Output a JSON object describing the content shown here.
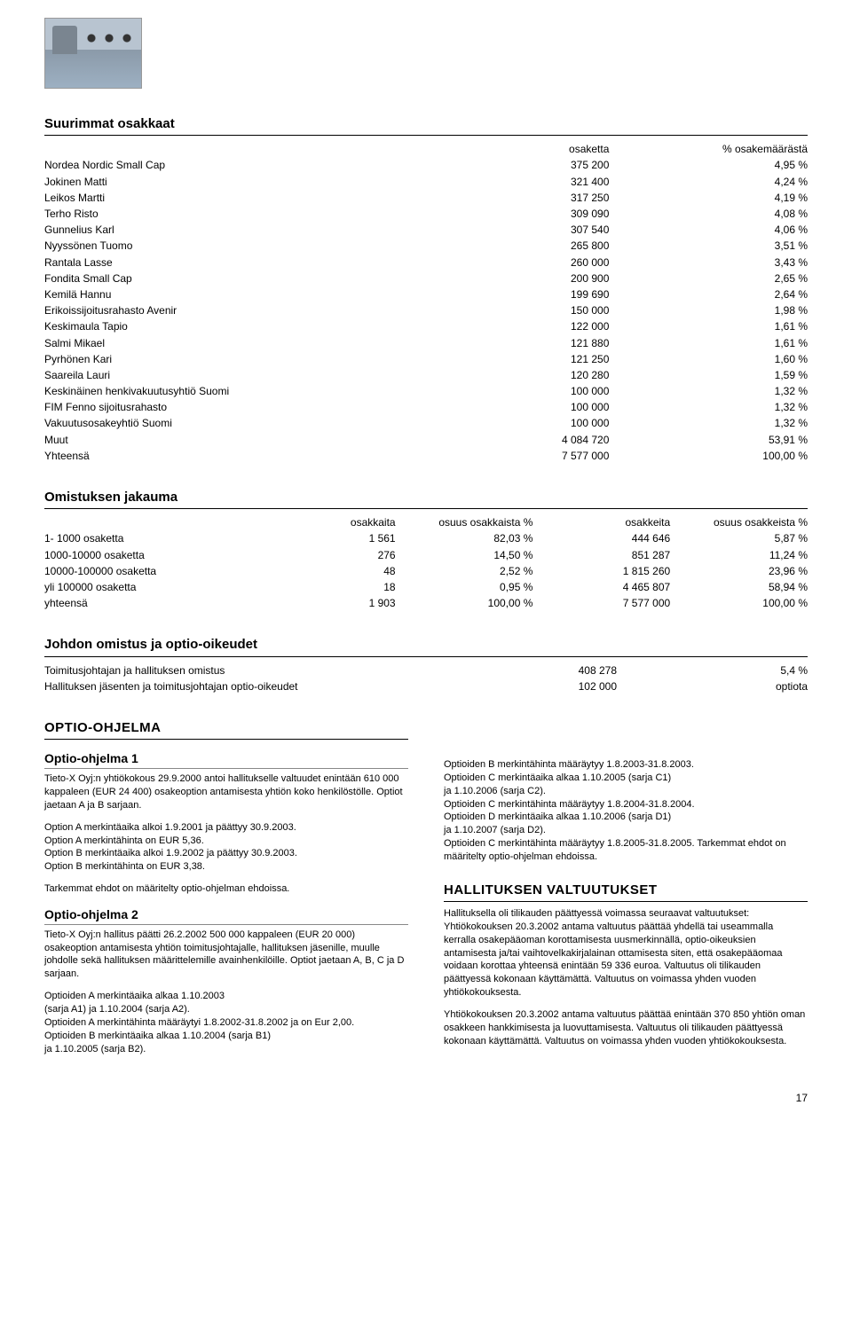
{
  "page_number": "17",
  "shareholders": {
    "title": "Suurimmat osakkaat",
    "headers": [
      "",
      "osaketta",
      "% osakemäärästä"
    ],
    "rows": [
      [
        "Nordea Nordic Small Cap",
        "375 200",
        "4,95 %"
      ],
      [
        "Jokinen Matti",
        "321 400",
        "4,24 %"
      ],
      [
        "Leikos Martti",
        "317 250",
        "4,19 %"
      ],
      [
        "Terho Risto",
        "309 090",
        "4,08 %"
      ],
      [
        "Gunnelius Karl",
        "307 540",
        "4,06 %"
      ],
      [
        "Nyyssönen Tuomo",
        "265 800",
        "3,51 %"
      ],
      [
        "Rantala Lasse",
        "260 000",
        "3,43 %"
      ],
      [
        "Fondita Small Cap",
        "200 900",
        "2,65 %"
      ],
      [
        "Kemilä Hannu",
        "199 690",
        "2,64 %"
      ],
      [
        "Erikoissijoitusrahasto Avenir",
        "150 000",
        "1,98 %"
      ],
      [
        "Keskimaula Tapio",
        "122 000",
        "1,61 %"
      ],
      [
        "Salmi Mikael",
        "121 880",
        "1,61 %"
      ],
      [
        "Pyrhönen Kari",
        "121 250",
        "1,60 %"
      ],
      [
        "Saareila Lauri",
        "120 280",
        "1,59 %"
      ],
      [
        "Keskinäinen henkivakuutusyhtiö Suomi",
        "100 000",
        "1,32 %"
      ],
      [
        "FIM Fenno sijoitusrahasto",
        "100 000",
        "1,32 %"
      ],
      [
        "Vakuutusosakeyhtiö Suomi",
        "100 000",
        "1,32 %"
      ],
      [
        "Muut",
        "4 084 720",
        "53,91 %"
      ],
      [
        "Yhteensä",
        "7 577 000",
        "100,00 %"
      ]
    ]
  },
  "distribution": {
    "title": "Omistuksen jakauma",
    "headers": [
      "",
      "osakkaita",
      "osuus osakkaista %",
      "osakkeita",
      "osuus osakkeista %"
    ],
    "rows": [
      [
        "1- 1000 osaketta",
        "1 561",
        "82,03 %",
        "444 646",
        "5,87 %"
      ],
      [
        "1000-10000 osaketta",
        "276",
        "14,50 %",
        "851 287",
        "11,24 %"
      ],
      [
        "10000-100000 osaketta",
        "48",
        "2,52 %",
        "1 815 260",
        "23,96 %"
      ],
      [
        "yli 100000 osaketta",
        "18",
        "0,95 %",
        "4 465 807",
        "58,94 %"
      ],
      [
        "yhteensä",
        "1 903",
        "100,00 %",
        "7 577 000",
        "100,00 %"
      ]
    ]
  },
  "mgmt": {
    "title": "Johdon omistus ja optio-oikeudet",
    "rows": [
      [
        "Toimitusjohtajan ja hallituksen omistus",
        "408 278",
        "5,4 %"
      ],
      [
        "Hallituksen jäsenten ja toimitusjohtajan optio-oikeudet",
        "102 000",
        "optiota"
      ]
    ]
  },
  "optio": {
    "heading": "OPTIO-OHJELMA",
    "p1_title": "Optio-ohjelma 1",
    "p1_a": "Tieto-X Oyj:n yhtiökokous 29.9.2000 antoi hallitukselle valtuudet enintään 610 000 kappaleen (EUR 24 400) osakeoption antamisesta yhtiön koko henkilöstölle. Optiot jaetaan A ja B sarjaan.",
    "p1_b": "Option A merkintäaika alkoi 1.9.2001 ja päättyy 30.9.2003.\nOption A merkintähinta on EUR 5,36.\nOption B merkintäaika alkoi 1.9.2002 ja päättyy 30.9.2003.\nOption B merkintähinta on EUR 3,38.",
    "p1_c": "Tarkemmat ehdot on määritelty optio-ohjelman ehdoissa.",
    "p2_title": "Optio-ohjelma 2",
    "p2_a": "Tieto-X Oyj:n hallitus päätti 26.2.2002  500 000 kappaleen (EUR 20 000) osakeoption antamisesta yhtiön toimitusjohtajalle, hallituksen jäsenille, muulle johdolle sekä hallituksen määrittelemille avainhenkilöille. Optiot jaetaan A, B, C ja D sarjaan.",
    "p2_b": "Optioiden A merkintäaika alkaa 1.10.2003\n(sarja A1) ja 1.10.2004 (sarja A2).\nOptioiden A merkintähinta määräytyi 1.8.2002-31.8.2002 ja on Eur 2,00.\nOptioiden B merkintäaika alkaa 1.10.2004 (sarja B1)\nja 1.10.2005 (sarja B2).",
    "right_a": "Optioiden B merkintähinta määräytyy 1.8.2003-31.8.2003.\nOptioiden C merkintäaika alkaa 1.10.2005 (sarja C1)\nja 1.10.2006 (sarja C2).\nOptioiden C merkintähinta määräytyy 1.8.2004-31.8.2004.\nOptioiden D merkintäaika alkaa 1.10.2006 (sarja D1)\nja 1.10.2007 (sarja D2).\nOptioiden C merkintähinta määräytyy 1.8.2005-31.8.2005. Tarkemmat ehdot on määritelty optio-ohjelman ehdoissa.",
    "auth_heading": "HALLITUKSEN VALTUUTUKSET",
    "auth_a": "Hallituksella oli tilikauden päättyessä voimassa seuraavat valtuutukset: Yhtiökokouksen 20.3.2002 antama valtuutus päättää yhdellä tai useammalla kerralla osakepääoman korottamisesta uusmerkinnällä, optio-oikeuksien antamisesta ja/tai vaihtovelkakirjalainan ottamisesta siten, että osakepääomaa voidaan korottaa yhteensä enintään 59 336 euroa. Valtuutus oli tilikauden päättyessä kokonaan käyttämättä. Valtuutus on voimassa yhden vuoden yhtiökokouksesta.",
    "auth_b": "Yhtiökokouksen 20.3.2002 antama valtuutus päättää enintään 370 850 yhtiön oman osakkeen hankkimisesta ja luovuttamisesta. Valtuutus oli tilikauden päättyessä kokonaan käyttämättä. Valtuutus on voimassa yhden vuoden yhtiökokouksesta."
  }
}
